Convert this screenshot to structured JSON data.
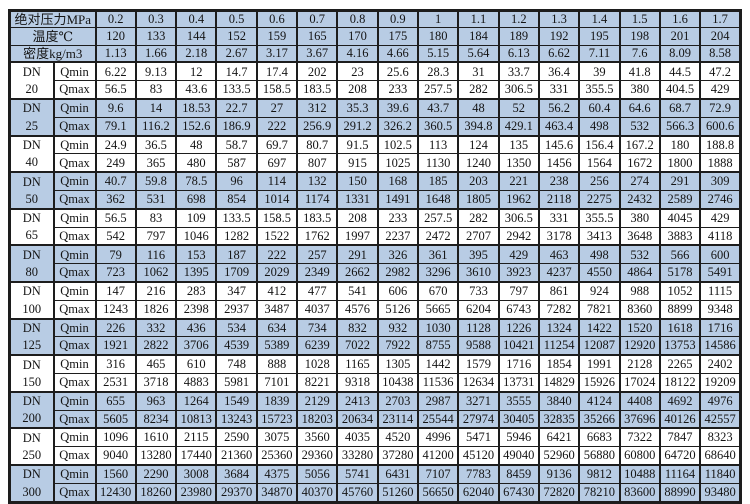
{
  "table": {
    "dn_label": "DN",
    "qmin_label": "Qmin",
    "qmax_label": "Qmax",
    "pressure_row": {
      "label": "绝对压力MPa",
      "values": [
        "0.2",
        "0.3",
        "0.4",
        "0.5",
        "0.6",
        "0.7",
        "0.8",
        "0.9",
        "1",
        "1.1",
        "1.2",
        "1.3",
        "1.4",
        "1.5",
        "1.6",
        "1.7"
      ]
    },
    "temperature_row": {
      "label": "温度℃",
      "values": [
        "120",
        "133",
        "144",
        "152",
        "159",
        "165",
        "170",
        "175",
        "180",
        "184",
        "189",
        "192",
        "195",
        "198",
        "201",
        "204"
      ]
    },
    "density_row": {
      "label": "密度kg/m3",
      "values": [
        "1.13",
        "1.66",
        "2.18",
        "2.67",
        "3.17",
        "3.67",
        "4.16",
        "4.66",
        "5.15",
        "5.64",
        "6.13",
        "6.62",
        "7.11",
        "7.6",
        "8.09",
        "8.58"
      ]
    },
    "groups": [
      {
        "size": "20",
        "qmin": [
          "6.22",
          "9.13",
          "12",
          "14.7",
          "17.4",
          "202",
          "23",
          "25.6",
          "28.3",
          "31",
          "33.7",
          "36.4",
          "39",
          "41.8",
          "44.5",
          "47.2"
        ],
        "qmax": [
          "56.5",
          "83",
          "43.6",
          "133.5",
          "158.5",
          "183.5",
          "208",
          "233",
          "257.5",
          "282",
          "306.5",
          "331",
          "355.5",
          "380",
          "404.5",
          "429"
        ]
      },
      {
        "size": "25",
        "qmin": [
          "9.6",
          "14",
          "18.53",
          "22.7",
          "27",
          "312",
          "35.3",
          "39.6",
          "43.7",
          "48",
          "52",
          "56.2",
          "60.4",
          "64.6",
          "68.7",
          "72.9"
        ],
        "qmax": [
          "79.1",
          "116.2",
          "152.6",
          "186.9",
          "222",
          "256.9",
          "291.2",
          "326.2",
          "360.5",
          "394.8",
          "429.1",
          "463.4",
          "498",
          "532",
          "566.3",
          "600.6"
        ]
      },
      {
        "size": "40",
        "qmin": [
          "24.9",
          "36.5",
          "48",
          "58.7",
          "69.7",
          "80.7",
          "91.5",
          "102.5",
          "113",
          "124",
          "135",
          "145.6",
          "156.4",
          "167.2",
          "180",
          "188.8"
        ],
        "qmax": [
          "249",
          "365",
          "480",
          "587",
          "697",
          "807",
          "915",
          "1025",
          "1130",
          "1240",
          "1350",
          "1456",
          "1564",
          "1672",
          "1800",
          "1888"
        ]
      },
      {
        "size": "50",
        "qmin": [
          "40.7",
          "59.8",
          "78.5",
          "96",
          "114",
          "132",
          "150",
          "168",
          "185",
          "203",
          "221",
          "238",
          "256",
          "274",
          "291",
          "309"
        ],
        "qmax": [
          "362",
          "531",
          "698",
          "854",
          "1014",
          "1174",
          "1331",
          "1491",
          "1648",
          "1805",
          "1962",
          "2118",
          "2275",
          "2432",
          "2589",
          "2746"
        ]
      },
      {
        "size": "65",
        "qmin": [
          "56.5",
          "83",
          "109",
          "133.5",
          "158.5",
          "183.5",
          "208",
          "233",
          "257.5",
          "282",
          "306.5",
          "331",
          "355.5",
          "380",
          "4045",
          "429"
        ],
        "qmax": [
          "542",
          "797",
          "1046",
          "1282",
          "1522",
          "1762",
          "1997",
          "2237",
          "2472",
          "2707",
          "2942",
          "3178",
          "3413",
          "3648",
          "3883",
          "4118"
        ]
      },
      {
        "size": "80",
        "qmin": [
          "79",
          "116",
          "153",
          "187",
          "222",
          "257",
          "291",
          "326",
          "361",
          "395",
          "429",
          "463",
          "498",
          "532",
          "566",
          "600"
        ],
        "qmax": [
          "723",
          "1062",
          "1395",
          "1709",
          "2029",
          "2349",
          "2662",
          "2982",
          "3296",
          "3610",
          "3923",
          "4237",
          "4550",
          "4864",
          "5178",
          "5491"
        ]
      },
      {
        "size": "100",
        "qmin": [
          "147",
          "216",
          "283",
          "347",
          "412",
          "477",
          "541",
          "606",
          "670",
          "733",
          "797",
          "861",
          "924",
          "988",
          "1052",
          "1115"
        ],
        "qmax": [
          "1243",
          "1826",
          "2398",
          "2937",
          "3487",
          "4037",
          "4576",
          "5126",
          "5665",
          "6204",
          "6743",
          "7282",
          "7821",
          "8360",
          "8899",
          "9348"
        ]
      },
      {
        "size": "125",
        "qmin": [
          "226",
          "332",
          "436",
          "534",
          "634",
          "734",
          "832",
          "932",
          "1030",
          "1128",
          "1226",
          "1324",
          "1422",
          "1520",
          "1618",
          "1716"
        ],
        "qmax": [
          "1921",
          "2822",
          "3706",
          "4539",
          "5389",
          "6239",
          "7022",
          "7922",
          "8755",
          "9588",
          "10421",
          "11254",
          "12087",
          "12920",
          "13753",
          "14586"
        ]
      },
      {
        "size": "150",
        "qmin": [
          "316",
          "465",
          "610",
          "748",
          "888",
          "1028",
          "1165",
          "1305",
          "1442",
          "1579",
          "1716",
          "1854",
          "1991",
          "2128",
          "2265",
          "2402"
        ],
        "qmax": [
          "2531",
          "3718",
          "4883",
          "5981",
          "7101",
          "8221",
          "9318",
          "10438",
          "11536",
          "12634",
          "13731",
          "14829",
          "15926",
          "17024",
          "18122",
          "19209"
        ]
      },
      {
        "size": "200",
        "qmin": [
          "655",
          "963",
          "1264",
          "1549",
          "1839",
          "2129",
          "2413",
          "2703",
          "2987",
          "3271",
          "3555",
          "3840",
          "4124",
          "4408",
          "4692",
          "4976"
        ],
        "qmax": [
          "5605",
          "8234",
          "10813",
          "13243",
          "15723",
          "18203",
          "20634",
          "23114",
          "25544",
          "27974",
          "30405",
          "32835",
          "35266",
          "37696",
          "40126",
          "42557"
        ]
      },
      {
        "size": "250",
        "qmin": [
          "1096",
          "1610",
          "2115",
          "2590",
          "3075",
          "3560",
          "4035",
          "4520",
          "4996",
          "5471",
          "5946",
          "6421",
          "6683",
          "7322",
          "7847",
          "8323"
        ],
        "qmax": [
          "9040",
          "13280",
          "17440",
          "21360",
          "25360",
          "29360",
          "33280",
          "37280",
          "41200",
          "45120",
          "49040",
          "52960",
          "56880",
          "60800",
          "64720",
          "68640"
        ]
      },
      {
        "size": "300",
        "qmin": [
          "1560",
          "2290",
          "3008",
          "3684",
          "4375",
          "5056",
          "5741",
          "6431",
          "7107",
          "7783",
          "8459",
          "9136",
          "9812",
          "10488",
          "11164",
          "11840"
        ],
        "qmax": [
          "12430",
          "18260",
          "23980",
          "29370",
          "34870",
          "40370",
          "45760",
          "51260",
          "56650",
          "62040",
          "67430",
          "72820",
          "78210",
          "83600",
          "88990",
          "93480"
        ]
      }
    ]
  },
  "colors": {
    "header_background": "#b8cce4",
    "alternate_group_background": "#b8cce4",
    "plain_group_background": "#ffffff",
    "border": "#1d1d1d"
  }
}
